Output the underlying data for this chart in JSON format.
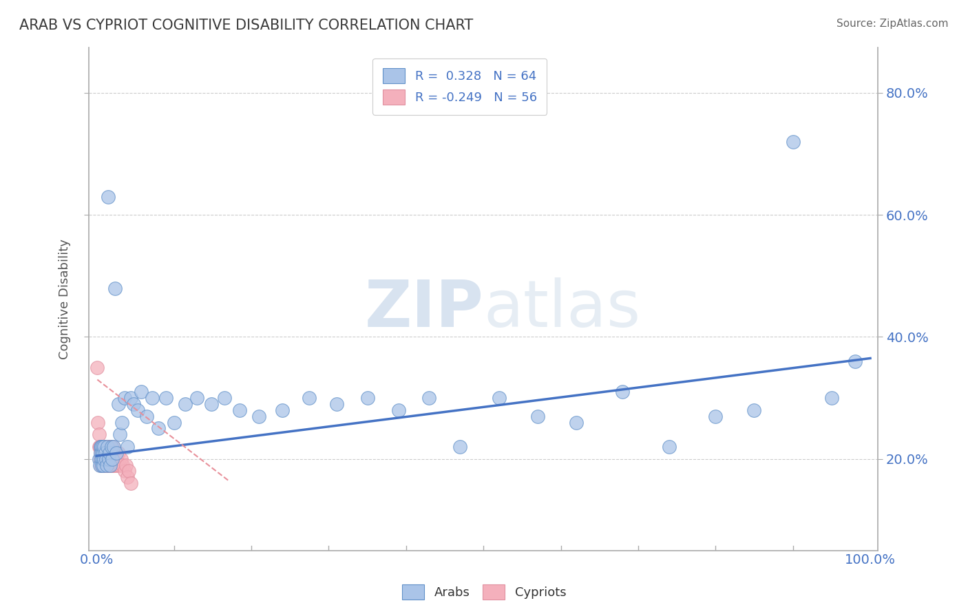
{
  "title": "ARAB VS CYPRIOT COGNITIVE DISABILITY CORRELATION CHART",
  "source": "Source: ZipAtlas.com",
  "ylabel": "Cognitive Disability",
  "arab_R": 0.328,
  "arab_N": 64,
  "cypriot_R": -0.249,
  "cypriot_N": 56,
  "title_color": "#3a3a3a",
  "source_color": "#666666",
  "grid_color": "#cccccc",
  "watermark": "ZIPatlas",
  "arab_scatter_color": "#aac4e8",
  "cypriot_scatter_color": "#f4b0bc",
  "arab_line_color": "#4472c4",
  "cypriot_line_color": "#e8909a",
  "arab_points_x": [
    0.003,
    0.004,
    0.005,
    0.005,
    0.006,
    0.006,
    0.007,
    0.007,
    0.008,
    0.008,
    0.009,
    0.009,
    0.01,
    0.01,
    0.011,
    0.012,
    0.013,
    0.014,
    0.015,
    0.016,
    0.017,
    0.018,
    0.019,
    0.02,
    0.022,
    0.024,
    0.026,
    0.028,
    0.03,
    0.033,
    0.036,
    0.04,
    0.044,
    0.048,
    0.053,
    0.058,
    0.065,
    0.072,
    0.08,
    0.09,
    0.1,
    0.115,
    0.13,
    0.148,
    0.165,
    0.185,
    0.21,
    0.24,
    0.275,
    0.31,
    0.35,
    0.39,
    0.43,
    0.47,
    0.52,
    0.57,
    0.62,
    0.68,
    0.74,
    0.8,
    0.85,
    0.9,
    0.95,
    0.98
  ],
  "arab_points_y": [
    0.2,
    0.19,
    0.22,
    0.21,
    0.2,
    0.22,
    0.21,
    0.19,
    0.2,
    0.22,
    0.21,
    0.19,
    0.2,
    0.22,
    0.21,
    0.2,
    0.19,
    0.22,
    0.63,
    0.2,
    0.21,
    0.19,
    0.22,
    0.2,
    0.22,
    0.48,
    0.21,
    0.29,
    0.24,
    0.26,
    0.3,
    0.22,
    0.3,
    0.29,
    0.28,
    0.31,
    0.27,
    0.3,
    0.25,
    0.3,
    0.26,
    0.29,
    0.3,
    0.29,
    0.3,
    0.28,
    0.27,
    0.28,
    0.3,
    0.29,
    0.3,
    0.28,
    0.3,
    0.22,
    0.3,
    0.27,
    0.26,
    0.31,
    0.22,
    0.27,
    0.28,
    0.72,
    0.3,
    0.36
  ],
  "cypriot_points_x": [
    0.001,
    0.002,
    0.003,
    0.003,
    0.004,
    0.004,
    0.005,
    0.005,
    0.006,
    0.006,
    0.007,
    0.007,
    0.008,
    0.008,
    0.009,
    0.009,
    0.01,
    0.01,
    0.011,
    0.011,
    0.012,
    0.012,
    0.013,
    0.013,
    0.014,
    0.014,
    0.015,
    0.015,
    0.016,
    0.016,
    0.017,
    0.017,
    0.018,
    0.018,
    0.019,
    0.019,
    0.02,
    0.02,
    0.021,
    0.021,
    0.022,
    0.022,
    0.023,
    0.024,
    0.025,
    0.026,
    0.027,
    0.028,
    0.03,
    0.032,
    0.034,
    0.036,
    0.038,
    0.04,
    0.042,
    0.044
  ],
  "cypriot_points_y": [
    0.35,
    0.26,
    0.24,
    0.22,
    0.22,
    0.2,
    0.21,
    0.19,
    0.22,
    0.2,
    0.21,
    0.19,
    0.22,
    0.2,
    0.21,
    0.19,
    0.22,
    0.2,
    0.21,
    0.19,
    0.22,
    0.2,
    0.21,
    0.19,
    0.22,
    0.2,
    0.21,
    0.19,
    0.22,
    0.2,
    0.21,
    0.19,
    0.22,
    0.2,
    0.21,
    0.19,
    0.21,
    0.19,
    0.22,
    0.2,
    0.21,
    0.19,
    0.21,
    0.2,
    0.19,
    0.2,
    0.19,
    0.21,
    0.19,
    0.2,
    0.19,
    0.18,
    0.19,
    0.17,
    0.18,
    0.16
  ],
  "ylim": [
    0.05,
    0.875
  ],
  "xlim": [
    -0.01,
    1.01
  ],
  "yticks": [
    0.2,
    0.4,
    0.6,
    0.8
  ],
  "ytick_labels": [
    "20.0%",
    "40.0%",
    "60.0%",
    "80.0%"
  ],
  "arab_line_x": [
    0.0,
    1.0
  ],
  "arab_line_y": [
    0.205,
    0.365
  ],
  "cyp_line_x0": 0.001,
  "cyp_line_x1": 0.17,
  "cyp_line_y0": 0.33,
  "cyp_line_y1": 0.165
}
